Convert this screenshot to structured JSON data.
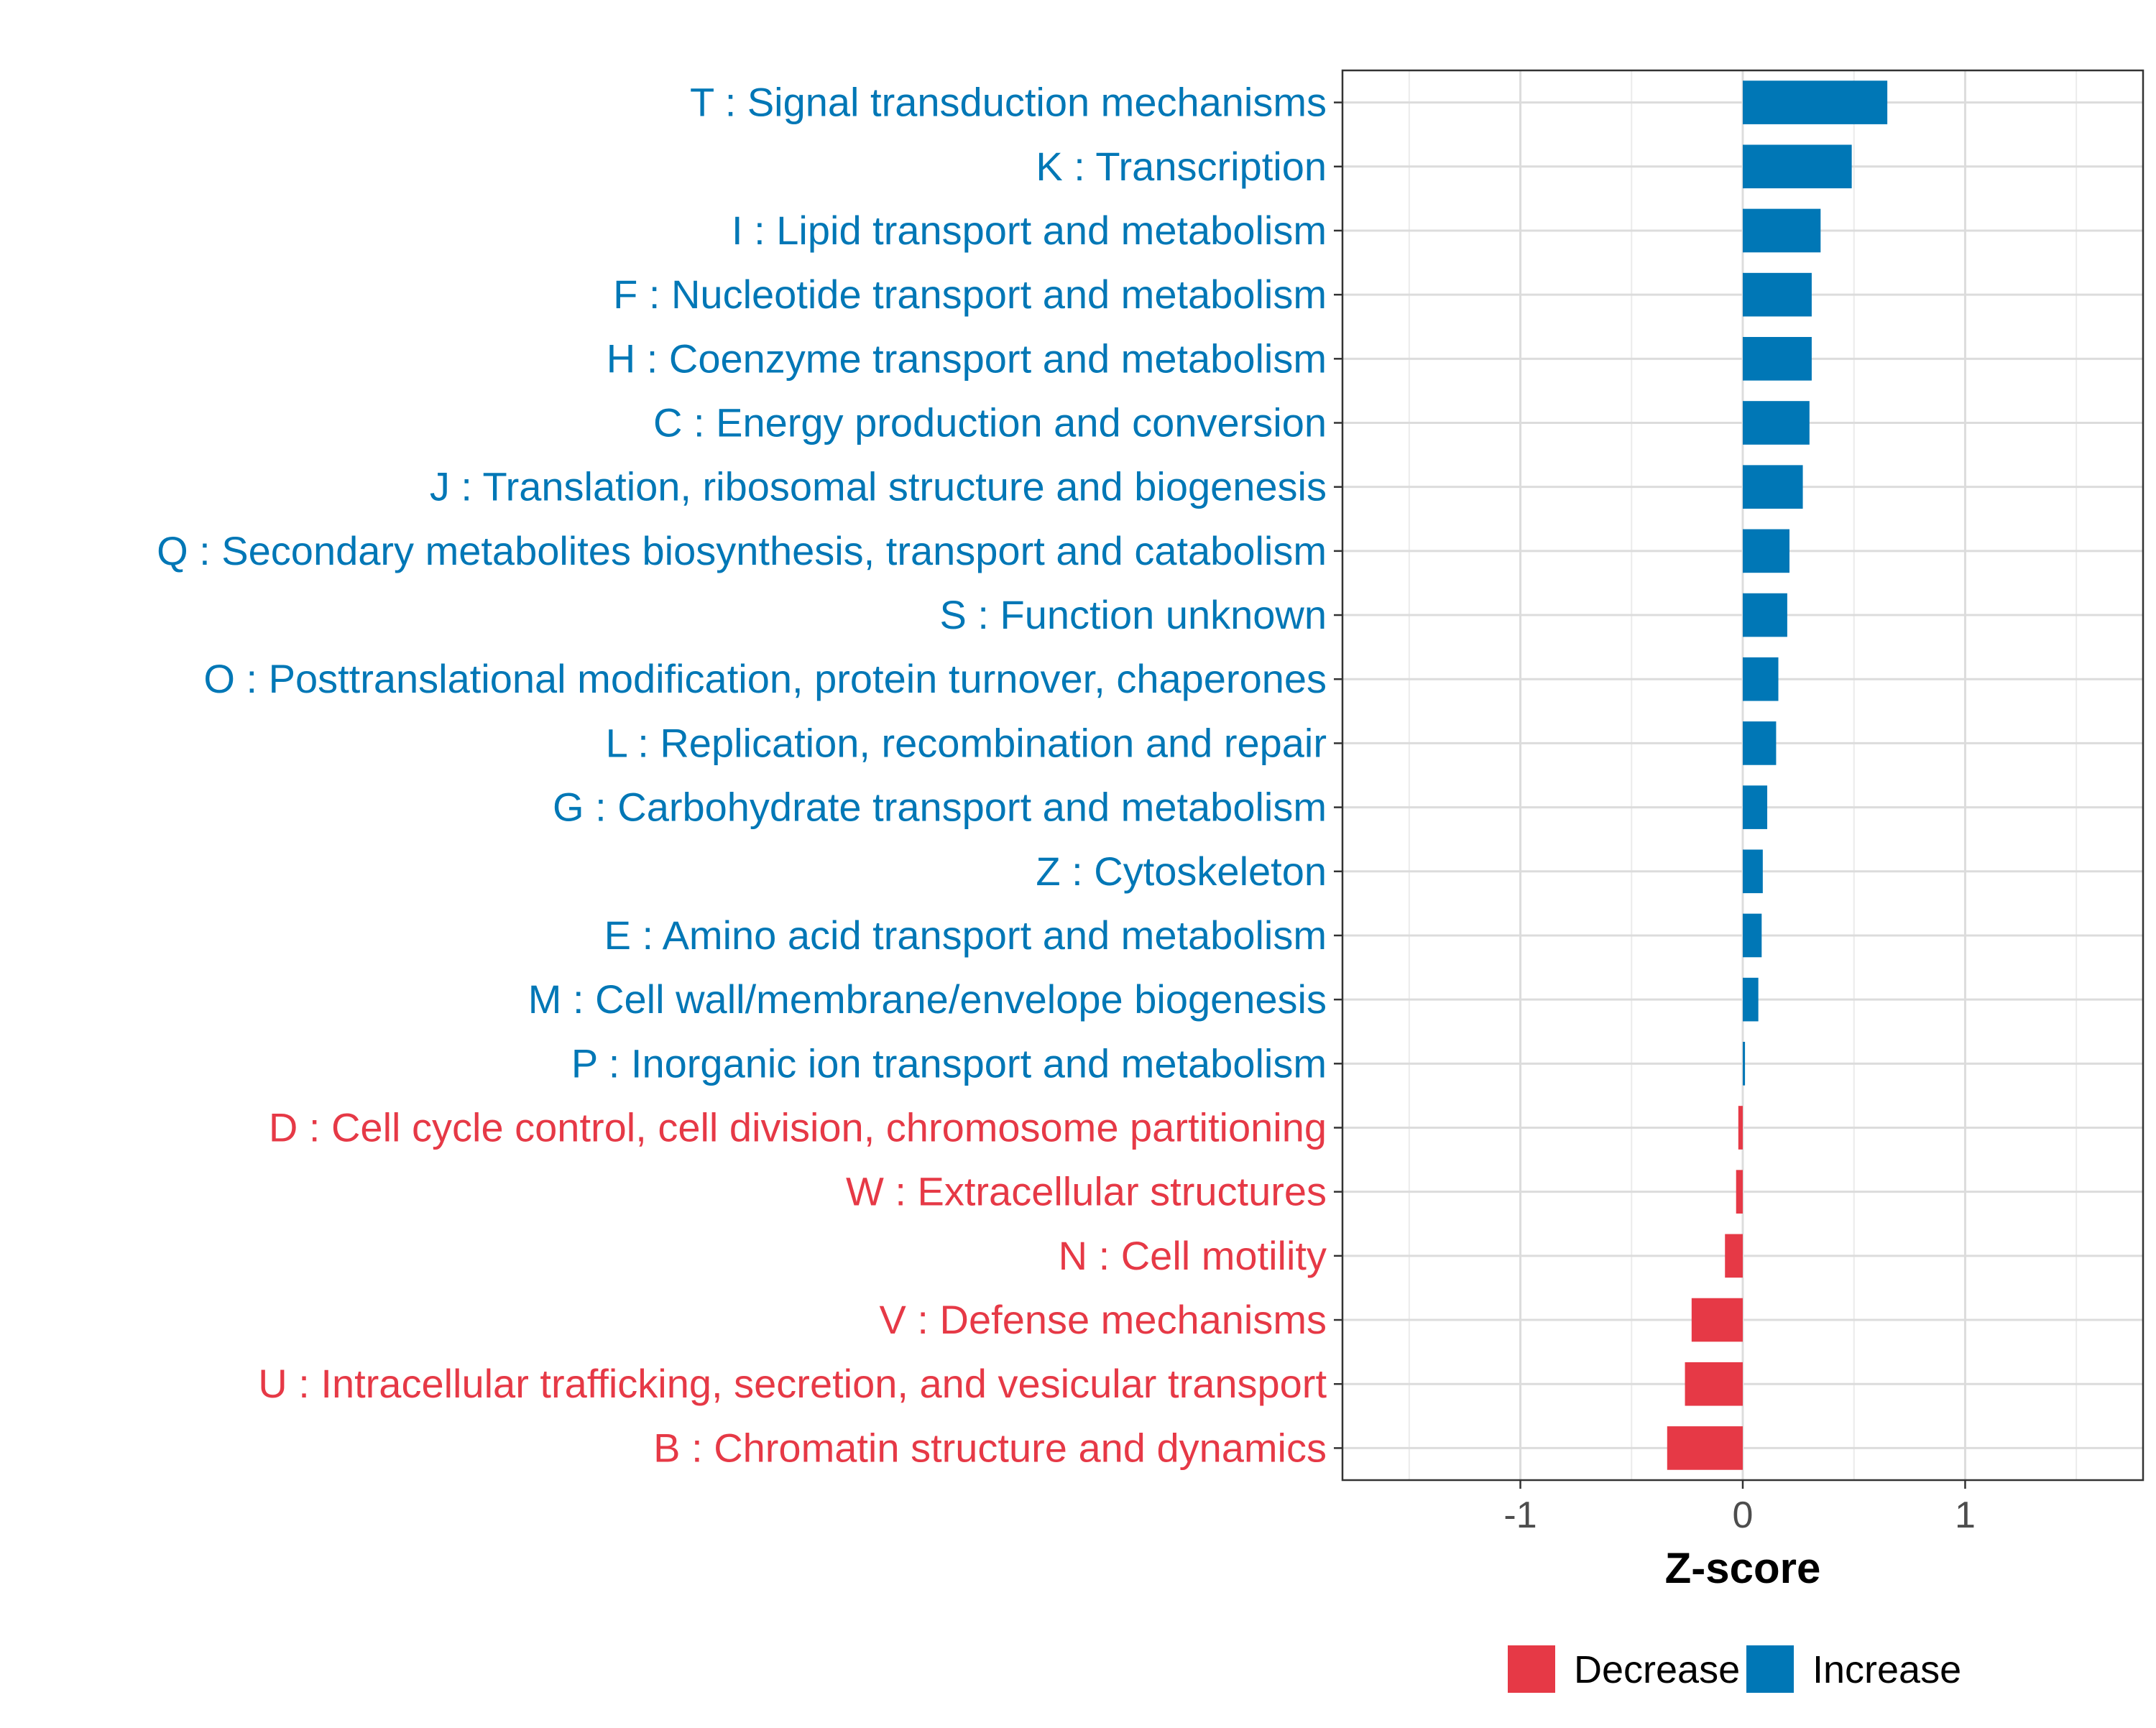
{
  "chart_data": {
    "type": "bar",
    "orientation": "horizontal",
    "title": "",
    "xlabel": "Z-score",
    "ylabel": "",
    "xlim": [
      -1.8,
      1.8
    ],
    "xticks": [
      -1,
      0,
      1
    ],
    "xtick_labels": [
      "-1",
      "0",
      "1"
    ],
    "grid": true,
    "legend_position": "bottom",
    "colors": {
      "Decrease": "#E63946",
      "Increase": "#0077B6"
    },
    "legend": [
      {
        "name": "Decrease",
        "color": "#E63946"
      },
      {
        "name": "Increase",
        "color": "#0077B6"
      }
    ],
    "categories": [
      "T : Signal transduction mechanisms",
      "K : Transcription",
      "I : Lipid transport and metabolism",
      "F : Nucleotide transport and metabolism",
      "H : Coenzyme transport and metabolism",
      "C : Energy production and conversion",
      "J : Translation, ribosomal structure and biogenesis",
      "Q : Secondary metabolites biosynthesis, transport and catabolism",
      "S : Function unknown",
      "O : Posttranslational modification, protein turnover, chaperones",
      "L : Replication, recombination and repair",
      "G : Carbohydrate transport and metabolism",
      "Z : Cytoskeleton",
      "E : Amino acid transport and metabolism",
      "M : Cell wall/membrane/envelope biogenesis",
      "P : Inorganic ion transport and metabolism",
      "D : Cell cycle control, cell division, chromosome partitioning",
      "W : Extracellular structures",
      "N : Cell motility",
      "V : Defense mechanisms",
      "U : Intracellular trafficking, secretion, and vesicular transport",
      "B : Chromatin structure and dynamics"
    ],
    "values": [
      0.65,
      0.49,
      0.35,
      0.31,
      0.31,
      0.3,
      0.27,
      0.21,
      0.2,
      0.16,
      0.15,
      0.11,
      0.09,
      0.085,
      0.07,
      0.01,
      -0.02,
      -0.03,
      -0.08,
      -0.23,
      -0.26,
      -0.34
    ],
    "groups": [
      "Increase",
      "Increase",
      "Increase",
      "Increase",
      "Increase",
      "Increase",
      "Increase",
      "Increase",
      "Increase",
      "Increase",
      "Increase",
      "Increase",
      "Increase",
      "Increase",
      "Increase",
      "Increase",
      "Decrease",
      "Decrease",
      "Decrease",
      "Decrease",
      "Decrease",
      "Decrease"
    ]
  }
}
